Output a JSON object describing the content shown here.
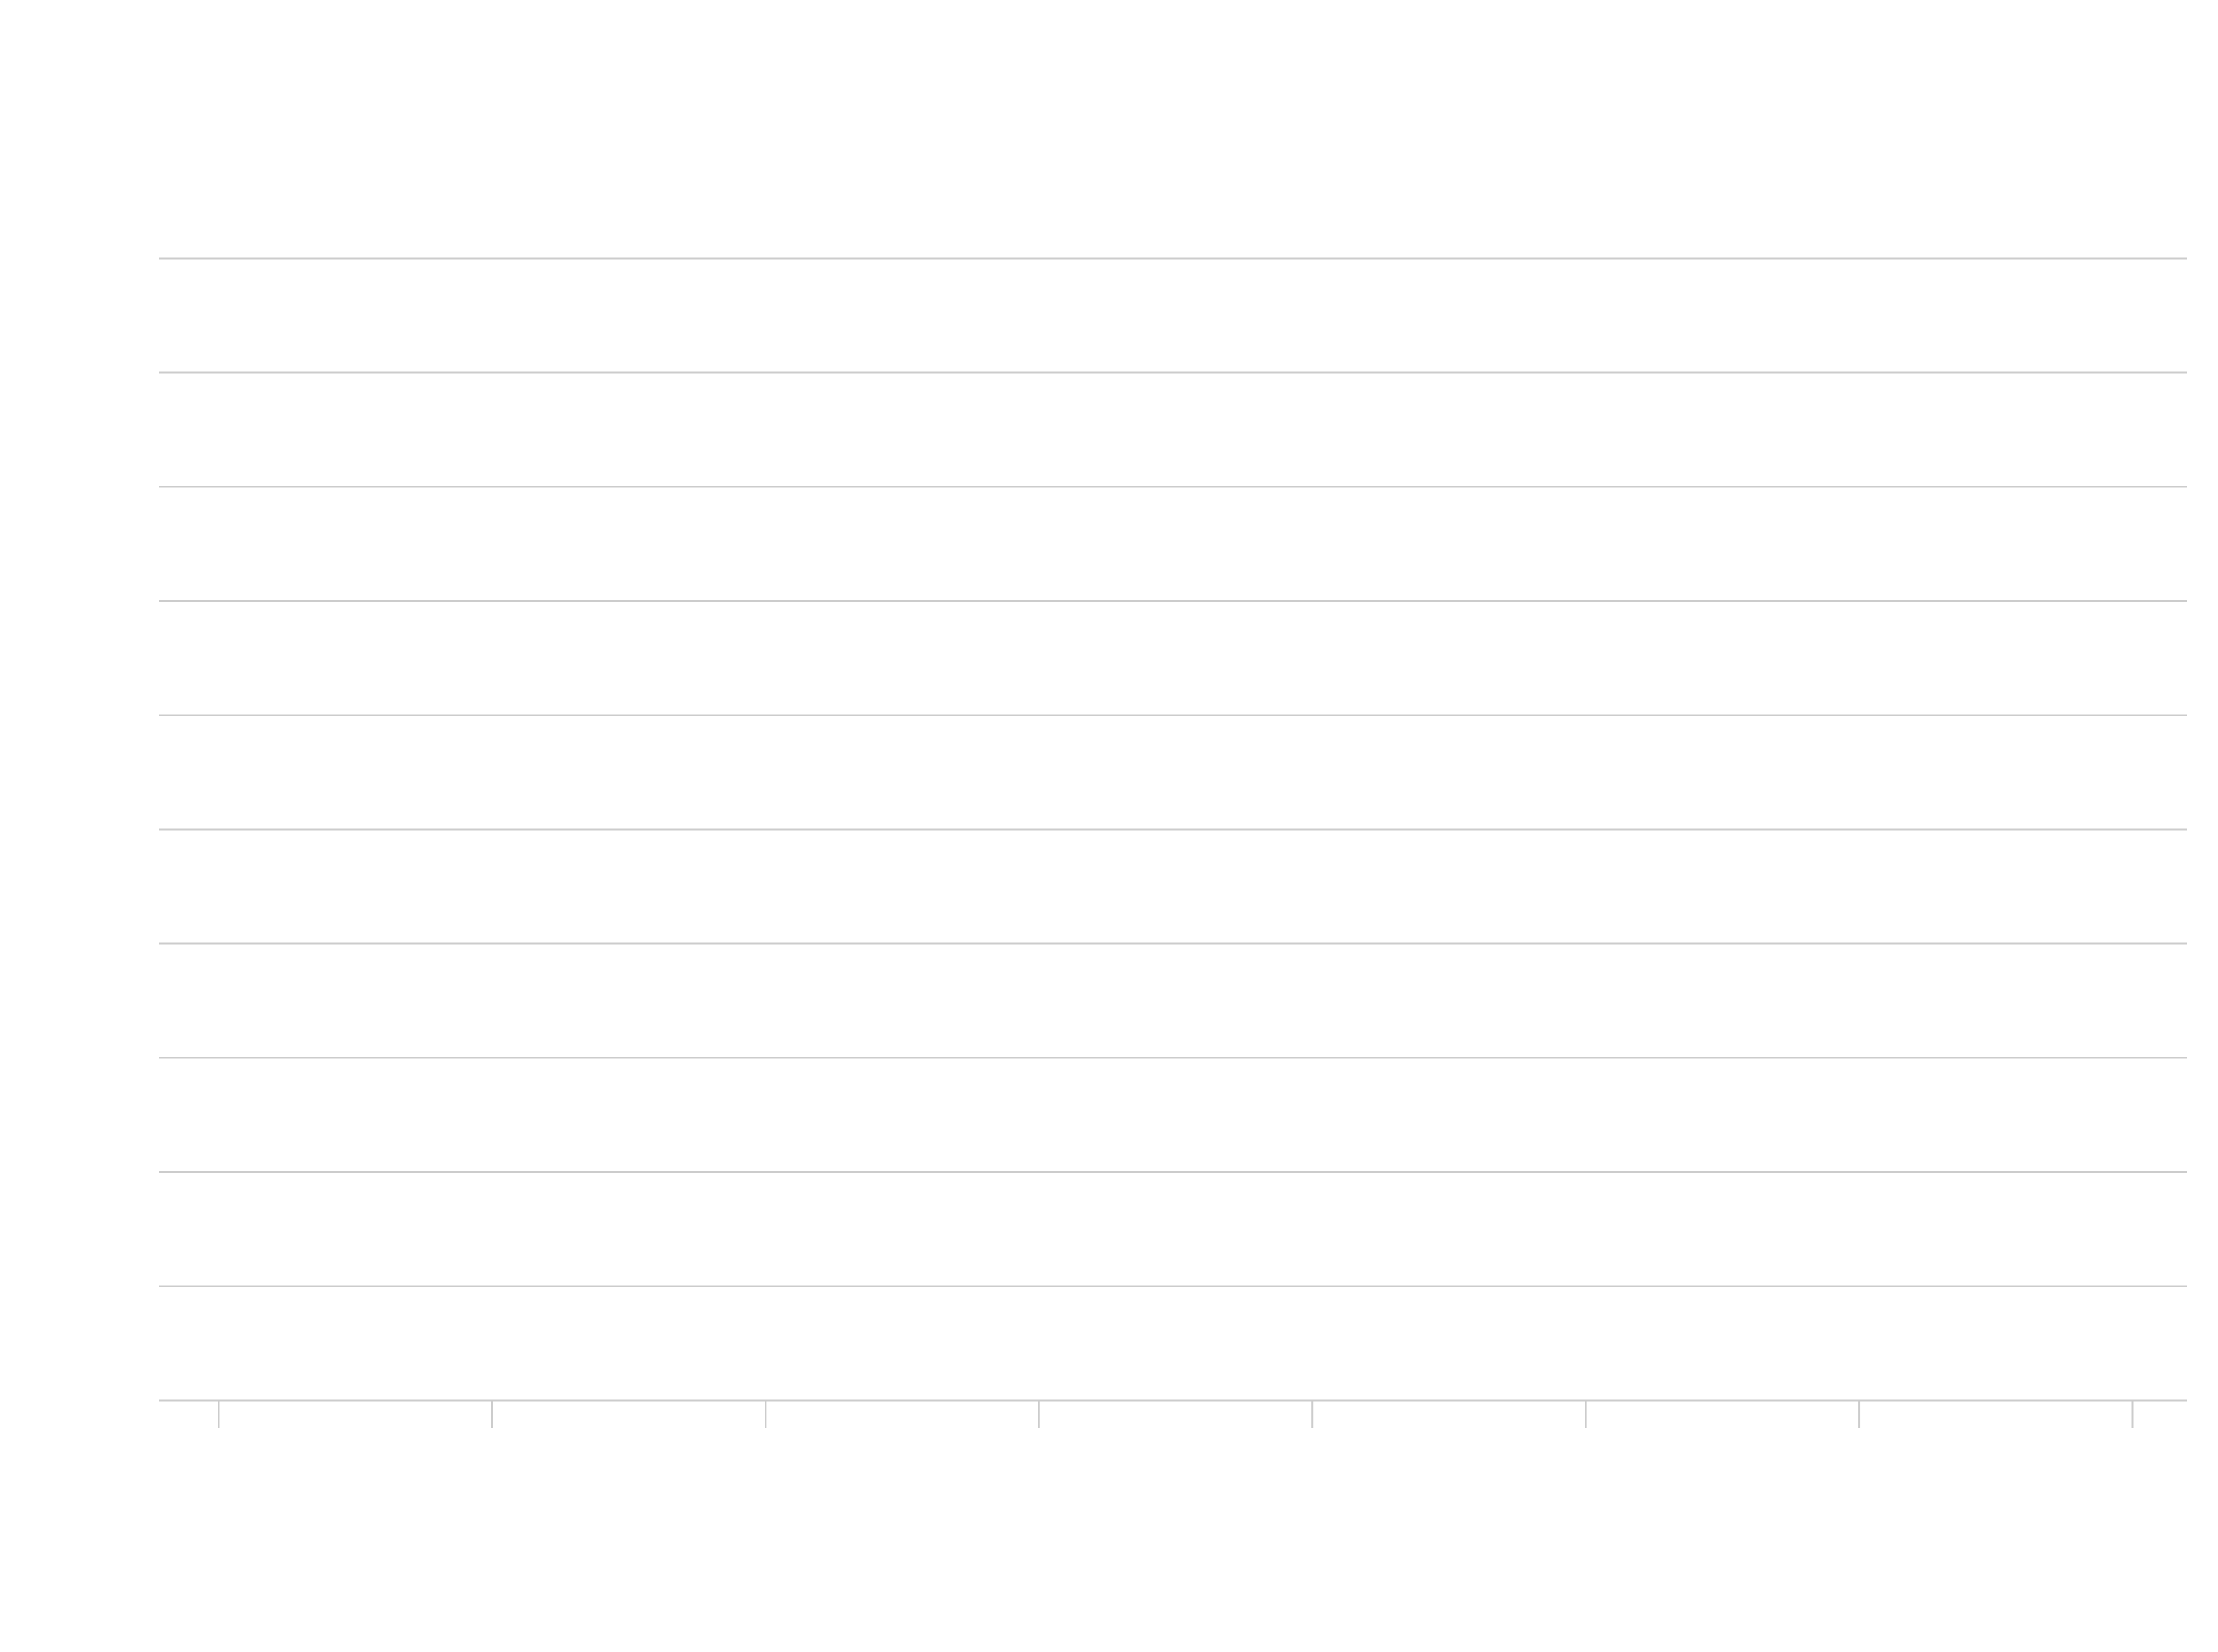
{
  "chart_data": {
    "type": "line",
    "title": "",
    "subtitle": "",
    "xlabel": "",
    "ylabel": "",
    "x_tick_count": 8,
    "y_gridline_count": 11,
    "grid": true,
    "colors": {
      "background": "#ffffff",
      "gridline": "#cccccc",
      "tick": "#cccccc"
    }
  }
}
